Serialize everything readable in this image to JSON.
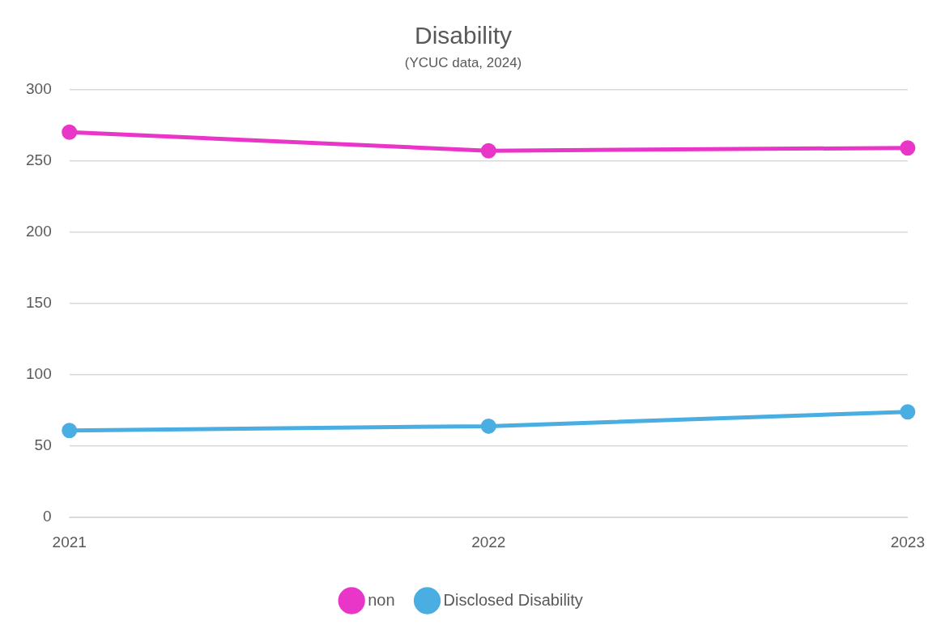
{
  "chart_data": {
    "type": "line",
    "title": "Disability",
    "subtitle": "(YCUC data, 2024)",
    "categories": [
      "2021",
      "2022",
      "2023"
    ],
    "series": [
      {
        "name": "non",
        "color": "#e936c8",
        "values": [
          270,
          257,
          259
        ]
      },
      {
        "name": "Disclosed Disability",
        "color": "#4aaee3",
        "values": [
          61,
          64,
          74
        ]
      }
    ],
    "ylim": [
      0,
      300
    ],
    "yticks": [
      0,
      50,
      100,
      150,
      200,
      250,
      300
    ],
    "grid": "y",
    "legend": "bottom",
    "marker": "circle",
    "line_style": "solid"
  }
}
